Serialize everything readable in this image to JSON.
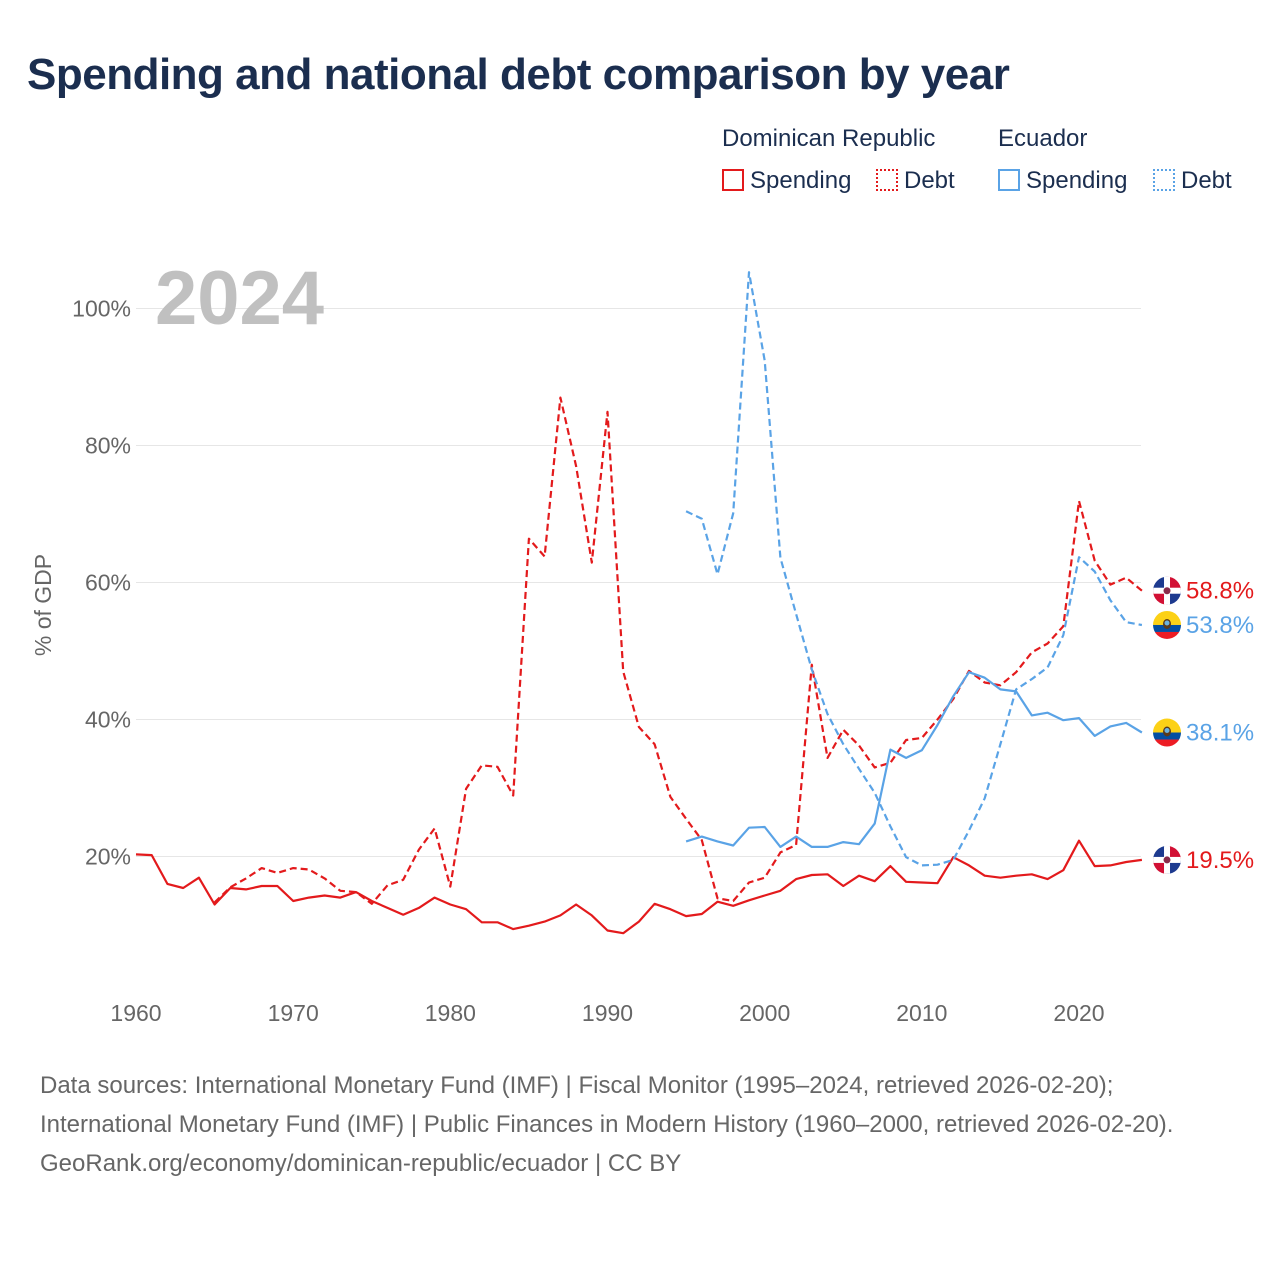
{
  "title": "Spending and national debt comparison by year",
  "legend": {
    "groups": [
      {
        "name": "Dominican Republic",
        "items": [
          "Spending",
          "Debt"
        ]
      },
      {
        "name": "Ecuador",
        "items": [
          "Spending",
          "Debt"
        ]
      }
    ]
  },
  "colors": {
    "dominican_republic": "#e31a1c",
    "ecuador": "#5aa3e6",
    "title": "#1b2e4f",
    "year_watermark": "#c0c0c0"
  },
  "chart_data": {
    "type": "line",
    "title": "Spending and national debt comparison by year",
    "year_label": "2024",
    "ylabel": "% of GDP",
    "xlabel": "",
    "xlim": [
      1960,
      2026
    ],
    "ylim": [
      0,
      110
    ],
    "x_ticks": [
      1960,
      1970,
      1980,
      1990,
      2000,
      2010,
      2020
    ],
    "y_ticks": [
      {
        "value": 20,
        "label": "20%"
      },
      {
        "value": 40,
        "label": "40%"
      },
      {
        "value": 60,
        "label": "60%"
      },
      {
        "value": 80,
        "label": "80%"
      },
      {
        "value": 100,
        "label": "100%"
      }
    ],
    "series": [
      {
        "name": "Dominican Republic Spending",
        "country": "Dominican Republic",
        "metric": "Spending",
        "color": "#e31a1c",
        "dash": false,
        "end_label": "19.5%",
        "flag": "dominican-republic-flag",
        "x": [
          1960,
          1961,
          1962,
          1963,
          1964,
          1965,
          1966,
          1967,
          1968,
          1969,
          1970,
          1971,
          1972,
          1973,
          1974,
          1975,
          1976,
          1977,
          1978,
          1979,
          1980,
          1981,
          1982,
          1983,
          1984,
          1985,
          1986,
          1987,
          1988,
          1989,
          1990,
          1991,
          1992,
          1993,
          1994,
          1995,
          1996,
          1997,
          1998,
          1999,
          2000,
          2001,
          2002,
          2003,
          2004,
          2005,
          2006,
          2007,
          2008,
          2009,
          2010,
          2011,
          2012,
          2013,
          2014,
          2015,
          2016,
          2017,
          2018,
          2019,
          2020,
          2021,
          2022,
          2023,
          2024
        ],
        "values": [
          20.3,
          20.2,
          16.0,
          15.4,
          16.9,
          13.0,
          15.4,
          15.2,
          15.7,
          15.7,
          13.5,
          14.0,
          14.3,
          14.0,
          14.8,
          13.5,
          12.5,
          11.5,
          12.5,
          14.0,
          13.0,
          12.3,
          10.4,
          10.4,
          9.4,
          9.9,
          10.5,
          11.4,
          13.0,
          11.4,
          9.2,
          8.8,
          10.5,
          13.1,
          12.3,
          11.3,
          11.6,
          13.4,
          12.8,
          13.6,
          14.3,
          15.0,
          16.7,
          17.3,
          17.4,
          15.7,
          17.2,
          16.4,
          18.6,
          16.3,
          16.2,
          16.1,
          19.9,
          18.7,
          17.2,
          16.9,
          17.2,
          17.4,
          16.7,
          18.0,
          22.3,
          18.6,
          18.7,
          19.2,
          19.5
        ]
      },
      {
        "name": "Dominican Republic Debt",
        "country": "Dominican Republic",
        "metric": "Debt",
        "color": "#e31a1c",
        "dash": true,
        "end_label": "58.8%",
        "flag": "dominican-republic-flag",
        "x": [
          1965,
          1966,
          1967,
          1968,
          1969,
          1970,
          1971,
          1972,
          1973,
          1974,
          1975,
          1976,
          1977,
          1978,
          1979,
          1980,
          1981,
          1982,
          1983,
          1984,
          1985,
          1986,
          1987,
          1988,
          1989,
          1990,
          1991,
          1992,
          1993,
          1994,
          1995,
          1996,
          1997,
          1998,
          1999,
          2000,
          2001,
          2002,
          2003,
          2004,
          2005,
          2006,
          2007,
          2008,
          2009,
          2010,
          2011,
          2012,
          2013,
          2014,
          2015,
          2016,
          2017,
          2018,
          2019,
          2020,
          2021,
          2022,
          2023,
          2024
        ],
        "values": [
          13.3,
          15.5,
          16.8,
          18.3,
          17.6,
          18.3,
          18.1,
          16.8,
          15.0,
          14.8,
          13.1,
          15.8,
          16.6,
          21.0,
          24.1,
          15.6,
          29.9,
          33.3,
          33.1,
          28.9,
          66.4,
          63.8,
          87.0,
          77.0,
          62.9,
          84.9,
          47.0,
          38.9,
          36.4,
          28.7,
          25.5,
          22.4,
          13.9,
          13.5,
          16.2,
          16.9,
          20.6,
          21.7,
          48.0,
          34.4,
          38.5,
          36.2,
          33.0,
          33.7,
          37.0,
          37.3,
          40.0,
          43.0,
          47.1,
          45.4,
          45.0,
          46.9,
          49.8,
          51.1,
          53.6,
          71.9,
          63.2,
          59.7,
          60.7,
          58.8
        ]
      },
      {
        "name": "Ecuador Spending",
        "country": "Ecuador",
        "metric": "Spending",
        "color": "#5aa3e6",
        "dash": false,
        "end_label": "38.1%",
        "flag": "ecuador-flag",
        "x": [
          1995,
          1996,
          1997,
          1998,
          1999,
          2000,
          2001,
          2002,
          2003,
          2004,
          2005,
          2006,
          2007,
          2008,
          2009,
          2010,
          2011,
          2012,
          2013,
          2014,
          2015,
          2016,
          2017,
          2018,
          2019,
          2020,
          2021,
          2022,
          2023,
          2024
        ],
        "values": [
          22.2,
          22.9,
          22.2,
          21.6,
          24.2,
          24.3,
          21.4,
          22.9,
          21.4,
          21.4,
          22.1,
          21.8,
          24.8,
          35.6,
          34.4,
          35.5,
          39.2,
          43.4,
          46.9,
          46.1,
          44.4,
          44.1,
          40.6,
          41.0,
          39.9,
          40.2,
          37.6,
          39.0,
          39.5,
          38.1
        ]
      },
      {
        "name": "Ecuador Debt",
        "country": "Ecuador",
        "metric": "Debt",
        "color": "#5aa3e6",
        "dash": true,
        "end_label": "53.8%",
        "flag": "ecuador-flag",
        "x": [
          1995,
          1996,
          1997,
          1998,
          1999,
          2000,
          2001,
          2002,
          2003,
          2004,
          2005,
          2006,
          2007,
          2008,
          2009,
          2010,
          2011,
          2012,
          2013,
          2014,
          2015,
          2016,
          2017,
          2018,
          2019,
          2020,
          2021,
          2022,
          2023,
          2024
        ],
        "values": [
          70.4,
          69.3,
          61.2,
          70.1,
          105.3,
          92.4,
          63.6,
          55.4,
          47.3,
          40.8,
          36.4,
          32.8,
          29.3,
          24.4,
          19.9,
          18.7,
          18.8,
          19.5,
          23.8,
          28.5,
          36.4,
          44.4,
          45.9,
          47.6,
          52.3,
          63.7,
          61.6,
          57.4,
          54.2,
          53.8
        ]
      }
    ]
  },
  "footer": {
    "sources": "Data sources: International Monetary Fund (IMF) | Fiscal Monitor (1995–2024, retrieved 2026-02-20); International Monetary Fund (IMF) | Public Finances in Modern History (1960–2000, retrieved 2026-02-20).",
    "credit": "GeoRank.org/economy/dominican-republic/ecuador | CC BY"
  }
}
